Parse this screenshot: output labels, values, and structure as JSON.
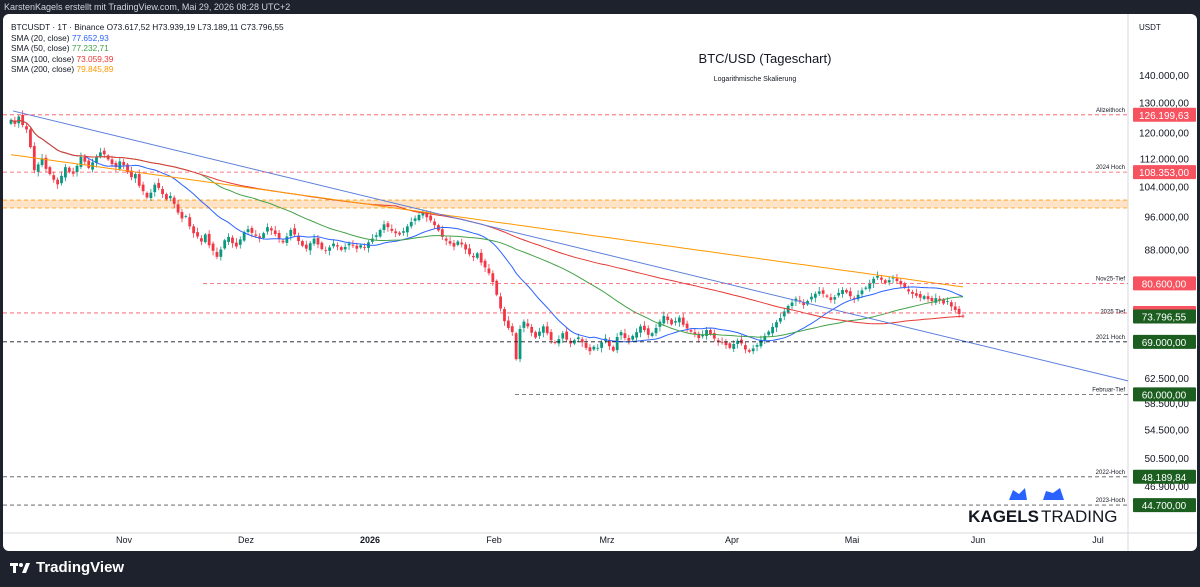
{
  "header": {
    "credit": "KarstenKagels erstellt mit TradingView.com, Mai 29, 2026 08:28 UTC+2"
  },
  "legend": {
    "symbol_line": "BTCUSDT · 1T · Binance  O73.617,52  H73.939,19  L73.189,11  C73.796,55",
    "items": [
      {
        "label": "SMA (20, close)",
        "value": "77.652,93",
        "color": "#2962ff"
      },
      {
        "label": "SMA (50, close)",
        "value": "77.232,71",
        "color": "#4caf50"
      },
      {
        "label": "SMA (100, close)",
        "value": "73.059,39",
        "color": "#f23645"
      },
      {
        "label": "SMA (200, close)",
        "value": "79.845,89",
        "color": "#ff9800"
      }
    ]
  },
  "footer": {
    "brand": "TradingView"
  },
  "watermark": {
    "brand_left": "KAGELS",
    "brand_right": "TRADING"
  },
  "colors": {
    "up": "#089981",
    "down": "#f23645",
    "sma20": "#2962ff",
    "sma50": "#43a047",
    "sma100": "#e53935",
    "sma200": "#ff9800",
    "trendline": "#5b7fdb",
    "level_red": "#f7525f",
    "level_green": "#1b5e20",
    "level_black": "#131722"
  },
  "chart_data": {
    "type": "candlestick",
    "title": "BTC/USD (Tageschart)",
    "subtitle": "Logarithmische Skalierung",
    "y_currency_label": "USDT",
    "yscale": "log",
    "ylim": [
      41500,
      165000
    ],
    "y_ticks": [
      {
        "value": 140000,
        "label": "140.000,00"
      },
      {
        "value": 130000,
        "label": "130.000,00"
      },
      {
        "value": 120000,
        "label": "120.000,00"
      },
      {
        "value": 112000,
        "label": "112.000,00"
      },
      {
        "value": 104000,
        "label": "104.000,00"
      },
      {
        "value": 96000,
        "label": "96.000,00"
      },
      {
        "value": 88000,
        "label": "88.000,00"
      },
      {
        "value": 62500,
        "label": "62.500,00"
      },
      {
        "value": 58500,
        "label": "58.500,00"
      },
      {
        "value": 54500,
        "label": "54.500,00"
      },
      {
        "value": 50500,
        "label": "50.500,00"
      },
      {
        "value": 46900,
        "label": "46.900,00"
      }
    ],
    "x_months": [
      "Nov",
      "Dez",
      "2026",
      "Feb",
      "Mrz",
      "Apr",
      "Mai",
      "Jun",
      "Jul"
    ],
    "levels": [
      {
        "name": "Allzeithoch",
        "value": 126199.63,
        "label": "126.199,63",
        "style": "red"
      },
      {
        "name": "2024 Hoch",
        "value": 108353.0,
        "label": "108.353,00",
        "style": "red"
      },
      {
        "name": "Nov25-Tief",
        "value": 80600.0,
        "label": "80.600,00",
        "style": "red"
      },
      {
        "name": "",
        "value": 74508.0,
        "label": "74.508,00",
        "style": "red"
      },
      {
        "name": "2025 Tief",
        "value": 73796.55,
        "label": "73.796,55",
        "style": "green"
      },
      {
        "name": "2021 Hoch",
        "value": 69000.0,
        "label": "69.000,00",
        "style": "black"
      },
      {
        "name": "Februar-Tief",
        "value": 60000.0,
        "label": "60.000,00",
        "style": "green"
      },
      {
        "name": "2022-Hoch",
        "value": 48189.84,
        "label": "48.189,84",
        "style": "green"
      },
      {
        "name": "2023-Hoch",
        "value": 44700.0,
        "label": "44.700,00",
        "style": "green"
      }
    ],
    "resistance_zone": [
      98500,
      100600
    ],
    "closes": [
      124500,
      123200,
      125600,
      122800,
      121400,
      115800,
      108900,
      110600,
      112400,
      109300,
      107800,
      106200,
      104900,
      107300,
      109800,
      108400,
      107900,
      110200,
      112800,
      111400,
      109600,
      111200,
      112900,
      114200,
      113600,
      112100,
      110700,
      109800,
      111500,
      110400,
      108300,
      106900,
      107800,
      104500,
      103000,
      101300,
      102600,
      104800,
      103900,
      102200,
      100800,
      101700,
      99600,
      97300,
      95800,
      96400,
      93800,
      92100,
      91300,
      90100,
      91800,
      89200,
      87900,
      86500,
      88200,
      90400,
      91200,
      89700,
      88900,
      90600,
      92400,
      93100,
      92200,
      91500,
      90800,
      92100,
      93600,
      92800,
      91900,
      90700,
      89900,
      91300,
      92900,
      91800,
      90200,
      89100,
      88400,
      89700,
      90800,
      89400,
      88300,
      87900,
      88700,
      89600,
      88900,
      88100,
      88800,
      89600,
      89100,
      88400,
      89200,
      88700,
      89900,
      90800,
      91600,
      92900,
      94300,
      93600,
      92700,
      92100,
      91800,
      92600,
      93800,
      94900,
      95800,
      96700,
      97200,
      96100,
      95300,
      94100,
      92800,
      91200,
      90300,
      89600,
      88900,
      90100,
      89400,
      88200,
      87100,
      86400,
      87300,
      85200,
      84100,
      82800,
      80900,
      78200,
      75400,
      72900,
      71600,
      70800,
      65900,
      71400,
      72800,
      71900,
      70700,
      69800,
      70900,
      71900,
      70600,
      69300,
      68800,
      69500,
      70600,
      69400,
      68700,
      69300,
      69800,
      68900,
      67900,
      67300,
      68100,
      67900,
      68900,
      69600,
      68200,
      67400,
      69900,
      70800,
      69700,
      69200,
      70100,
      70800,
      71900,
      71200,
      70300,
      70600,
      71600,
      72800,
      73900,
      73100,
      72300,
      72900,
      73600,
      72200,
      71500,
      70900,
      70400,
      69700,
      70300,
      71200,
      70400,
      69600,
      69100,
      68900,
      68400,
      67900,
      68600,
      69200,
      68700,
      67600,
      67200,
      67800,
      68400,
      69300,
      70100,
      70900,
      71800,
      72700,
      73500,
      74800,
      75900,
      76600,
      77400,
      76800,
      76100,
      76900,
      77800,
      78400,
      78900,
      78400,
      77800,
      77100,
      77700,
      78600,
      79200,
      78700,
      77900,
      77400,
      78200,
      79100,
      79700,
      80600,
      81600,
      82200,
      81400,
      80700,
      81300,
      81900,
      81100,
      80400,
      79700,
      78900,
      78400,
      78000,
      77600,
      77900,
      77300,
      76900,
      77500,
      77100,
      76400,
      76900,
      75800,
      75100,
      74300,
      73796.55
    ],
    "sma20_final": 77652.93,
    "sma50_final": 77232.71,
    "sma100_final": 73059.39,
    "sma200_final": 79845.89
  }
}
